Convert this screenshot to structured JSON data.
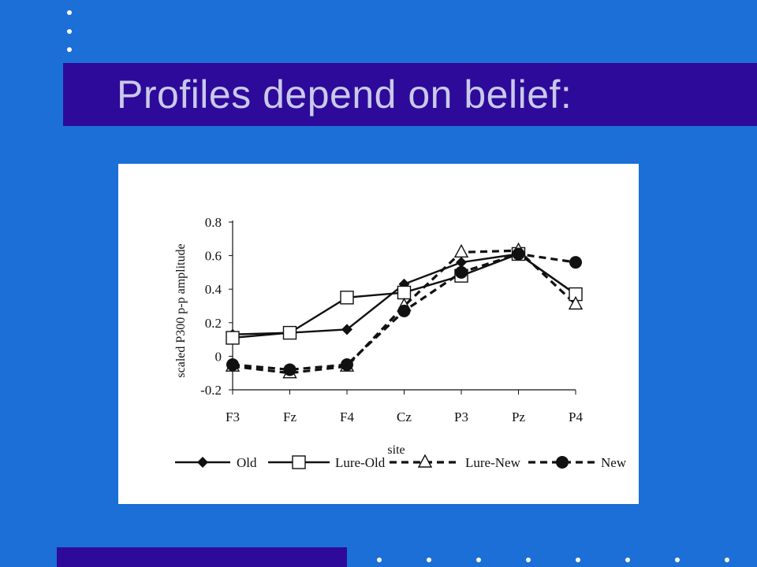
{
  "slide": {
    "title": "Profiles depend on belief:",
    "colors": {
      "background": "#1b6fd6",
      "title_bar": "#2e0a9a",
      "title_text": "#c9c9ea",
      "bullet_dots": "#ffffff"
    }
  },
  "chart_data": {
    "type": "line",
    "ylabel": "scaled P300 p-p amplitude",
    "xlabel": "site",
    "categories": [
      "F3",
      "Fz",
      "F4",
      "Cz",
      "P3",
      "Pz",
      "P4"
    ],
    "ylim": [
      -0.2,
      0.8
    ],
    "yticks": [
      "0.8",
      "0.6",
      "0.4",
      "0.2",
      "0",
      "-0.2"
    ],
    "grid": false,
    "legend_position": "bottom",
    "series": [
      {
        "name": "Old",
        "line": "solid",
        "marker": "diamond-filled",
        "values": [
          0.13,
          0.14,
          0.16,
          0.43,
          0.56,
          0.61,
          0.37
        ]
      },
      {
        "name": "Lure-Old",
        "line": "solid",
        "marker": "square-open",
        "values": [
          0.11,
          0.14,
          0.35,
          0.38,
          0.48,
          0.61,
          0.37
        ]
      },
      {
        "name": "Lure-New",
        "line": "dashed",
        "marker": "triangle-open",
        "values": [
          -0.06,
          -0.1,
          -0.06,
          0.3,
          0.62,
          0.63,
          0.31
        ]
      },
      {
        "name": "New",
        "line": "dashed",
        "marker": "circle-filled",
        "values": [
          -0.05,
          -0.08,
          -0.05,
          0.27,
          0.5,
          0.61,
          0.56
        ]
      }
    ]
  }
}
